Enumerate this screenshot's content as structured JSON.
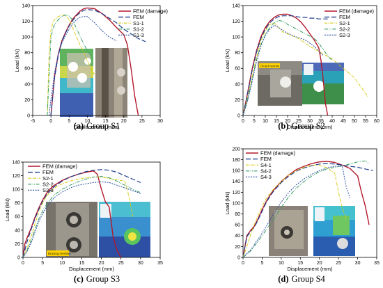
{
  "colors": {
    "fem_damage": "#b2182b",
    "fem": "#1f3f8f",
    "rep1": "#d8c80a",
    "rep2": "#2e9a5f",
    "rep3": "#2d4f9e"
  },
  "chart_data": [
    {
      "type": "line",
      "panel": "a",
      "caption_letter": "(a)",
      "caption_text": "Group S1",
      "xlabel": "Displacement (mm)",
      "ylabel": "Load (kN)",
      "xlim": [
        -5,
        30
      ],
      "ylim": [
        0,
        140
      ],
      "xticks": [
        -5,
        0,
        5,
        10,
        15,
        20,
        25,
        30
      ],
      "yticks": [
        0,
        20,
        40,
        60,
        80,
        100,
        120,
        140
      ],
      "legend_position": "top-right",
      "series": [
        {
          "name": "FEM (damage)",
          "style": "fem_damage",
          "x": [
            0,
            1,
            2,
            3,
            4,
            5,
            6,
            7,
            8,
            9,
            10,
            12,
            14,
            16,
            18,
            20,
            21,
            22,
            23,
            24
          ],
          "y": [
            0,
            50,
            78,
            95,
            106,
            115,
            123,
            128,
            133,
            136,
            137,
            136,
            130,
            122,
            112,
            103,
            90,
            60,
            25,
            0
          ]
        },
        {
          "name": "FEM",
          "style": "fem",
          "x": [
            0,
            1,
            2,
            3,
            4,
            5,
            6,
            7,
            8,
            9,
            10,
            12,
            14,
            16,
            18,
            20,
            22,
            24,
            26
          ],
          "y": [
            0,
            48,
            76,
            94,
            105,
            114,
            121,
            127,
            131,
            134,
            135,
            134,
            130,
            124,
            118,
            110,
            104,
            98,
            94
          ]
        },
        {
          "name": "S1-1",
          "style": "rep1",
          "x": [
            -1,
            -0.5,
            0,
            0.5,
            1,
            2,
            3,
            4,
            5,
            6,
            7,
            8,
            9,
            10,
            11,
            12
          ],
          "y": [
            0,
            80,
            108,
            118,
            122,
            126,
            128,
            127,
            122,
            112,
            100,
            90,
            80,
            70,
            60,
            52
          ]
        },
        {
          "name": "S1-2",
          "style": "rep2",
          "x": [
            -1,
            -0.3,
            0,
            0.5,
            1,
            2,
            3,
            4,
            5,
            6,
            7,
            8,
            9,
            10,
            11
          ],
          "y": [
            0,
            70,
            98,
            110,
            116,
            122,
            126,
            128,
            127,
            121,
            111,
            101,
            91,
            83,
            76
          ]
        },
        {
          "name": "S1-3",
          "style": "rep3",
          "x": [
            -0.5,
            0,
            1,
            2,
            3,
            4,
            5,
            6,
            7,
            8,
            9,
            10,
            12,
            14,
            16,
            18
          ],
          "y": [
            0,
            20,
            55,
            78,
            92,
            102,
            110,
            117,
            122,
            125,
            126,
            126,
            118,
            108,
            100,
            95
          ]
        }
      ]
    },
    {
      "type": "line",
      "panel": "b",
      "caption_letter": "(b)",
      "caption_text": "Group S2",
      "xlabel": "Displacement (mm)",
      "ylabel": "Load (kN)",
      "xlim": [
        0,
        60
      ],
      "ylim": [
        0,
        140
      ],
      "xticks": [
        0,
        5,
        10,
        15,
        20,
        25,
        30,
        35,
        40,
        45,
        50,
        55,
        60
      ],
      "yticks": [
        0,
        20,
        40,
        60,
        80,
        100,
        120,
        140
      ],
      "legend_position": "top-right",
      "insert_label": "Cloud nexmis",
      "series": [
        {
          "name": "FEM (damage)",
          "style": "fem_damage",
          "x": [
            0,
            2,
            4,
            6,
            8,
            10,
            12,
            14,
            16,
            18,
            20,
            22,
            24,
            26,
            28,
            30,
            32,
            34,
            35,
            36,
            37,
            38
          ],
          "y": [
            0,
            28,
            58,
            82,
            100,
            112,
            120,
            125,
            128,
            129,
            129,
            127,
            124,
            119,
            112,
            104,
            96,
            86,
            70,
            45,
            15,
            0
          ]
        },
        {
          "name": "FEM",
          "style": "fem",
          "x": [
            0,
            2,
            4,
            6,
            8,
            10,
            12,
            14,
            16,
            18,
            20,
            22,
            24,
            26,
            28,
            30,
            32,
            34,
            36,
            38
          ],
          "y": [
            0,
            27,
            56,
            80,
            98,
            110,
            118,
            123,
            126,
            127,
            127,
            127,
            126,
            125,
            125,
            124,
            124,
            123,
            123,
            123
          ]
        },
        {
          "name": "S2-1",
          "style": "rep1",
          "x": [
            0,
            2,
            4,
            6,
            8,
            10,
            12,
            14,
            16,
            18,
            20,
            25,
            30,
            35,
            40,
            45,
            50,
            52,
            54,
            56
          ],
          "y": [
            0,
            22,
            48,
            74,
            95,
            108,
            116,
            118,
            112,
            106,
            104,
            98,
            88,
            80,
            72,
            60,
            48,
            40,
            32,
            24
          ]
        },
        {
          "name": "S2-2",
          "style": "rep2",
          "x": [
            0,
            2,
            4,
            6,
            8,
            10,
            12,
            14,
            16,
            18,
            20,
            22,
            24,
            26,
            28,
            30,
            32,
            34,
            36,
            38,
            40
          ],
          "y": [
            0,
            20,
            45,
            70,
            90,
            103,
            112,
            118,
            121,
            120,
            116,
            113,
            110,
            107,
            104,
            101,
            98,
            92,
            84,
            76,
            70
          ]
        },
        {
          "name": "S2-3",
          "style": "rep3",
          "x": [
            0,
            2,
            4,
            6,
            8,
            10,
            12,
            14,
            16,
            18,
            20,
            22,
            24,
            26,
            28,
            30,
            32,
            34,
            36
          ],
          "y": [
            0,
            18,
            42,
            68,
            88,
            102,
            110,
            115,
            112,
            108,
            105,
            102,
            100,
            98,
            96,
            92,
            88,
            82,
            76
          ]
        }
      ]
    },
    {
      "type": "line",
      "panel": "c",
      "caption_letter": "(c)",
      "caption_text": "Group S3",
      "xlabel": "Displacement (mm)",
      "ylabel": "Load (kN)",
      "xlim": [
        0,
        35
      ],
      "ylim": [
        0,
        140
      ],
      "xticks": [
        0,
        5,
        10,
        15,
        20,
        25,
        30,
        35
      ],
      "yticks": [
        0,
        20,
        40,
        60,
        80,
        100,
        120,
        140
      ],
      "legend_position": "top-left",
      "insert_label": "Bracing member",
      "series": [
        {
          "name": "FEM (damage)",
          "style": "fem_damage",
          "x": [
            0,
            0.5,
            1,
            1.5,
            2,
            3,
            4,
            5,
            6,
            7,
            8,
            10,
            12,
            14,
            16,
            17,
            18,
            19,
            20,
            21,
            22,
            23,
            24,
            25
          ],
          "y": [
            0,
            20,
            28,
            35,
            42,
            58,
            72,
            84,
            94,
            101,
            106,
            113,
            118,
            122,
            125,
            126,
            127,
            122,
            100,
            82,
            74,
            30,
            10,
            0
          ]
        },
        {
          "name": "FEM",
          "style": "fem",
          "x": [
            0,
            1,
            2,
            3,
            4,
            5,
            6,
            8,
            10,
            12,
            14,
            16,
            18,
            20,
            22,
            24,
            26,
            28,
            30
          ],
          "y": [
            0,
            22,
            40,
            56,
            70,
            82,
            92,
            104,
            112,
            118,
            122,
            126,
            128,
            129,
            128,
            125,
            120,
            115,
            110
          ]
        },
        {
          "name": "S2-1",
          "style": "rep1",
          "x": [
            0,
            1,
            2,
            3,
            4,
            5,
            6,
            8,
            10,
            12,
            14,
            16,
            18,
            20,
            22,
            24,
            26,
            27,
            28
          ],
          "y": [
            0,
            12,
            30,
            48,
            66,
            80,
            90,
            102,
            108,
            112,
            115,
            117,
            118,
            118,
            116,
            114,
            112,
            90,
            60
          ]
        },
        {
          "name": "S2-2",
          "style": "rep2",
          "x": [
            0,
            1,
            2,
            3,
            4,
            5,
            6,
            8,
            10,
            12,
            14,
            16,
            18,
            20,
            22,
            24,
            26,
            28,
            30
          ],
          "y": [
            0,
            10,
            24,
            40,
            56,
            68,
            78,
            92,
            100,
            106,
            111,
            115,
            118,
            119,
            117,
            112,
            106,
            100,
            95
          ]
        },
        {
          "name": "S2-3",
          "style": "rep3",
          "x": [
            0,
            1,
            2,
            3,
            4,
            5,
            6,
            8,
            10,
            12,
            14,
            16,
            18,
            20,
            22,
            24,
            26,
            28,
            30
          ],
          "y": [
            0,
            8,
            20,
            36,
            52,
            64,
            74,
            88,
            96,
            102,
            106,
            108,
            110,
            111,
            110,
            106,
            102,
            98,
            94
          ]
        }
      ]
    },
    {
      "type": "line",
      "panel": "d",
      "caption_letter": "(d)",
      "caption_text": "Group S4",
      "xlabel": "Displacement (mm)",
      "ylabel": "Load (kN)",
      "xlim": [
        0,
        35
      ],
      "ylim": [
        0,
        200
      ],
      "xticks": [
        0,
        5,
        10,
        15,
        20,
        25,
        30,
        35
      ],
      "yticks": [
        0,
        20,
        40,
        60,
        80,
        100,
        120,
        140,
        160,
        180,
        200
      ],
      "legend_position": "top-left",
      "series": [
        {
          "name": "FEM (damage)",
          "style": "fem_damage",
          "x": [
            0,
            1,
            2,
            3,
            4,
            5,
            6,
            7,
            8,
            10,
            12,
            14,
            16,
            18,
            20,
            22,
            24,
            26,
            28,
            30,
            31,
            32,
            33
          ],
          "y": [
            0,
            40,
            50,
            58,
            72,
            88,
            102,
            114,
            124,
            140,
            152,
            162,
            168,
            173,
            176,
            177,
            175,
            170,
            164,
            150,
            120,
            95,
            60
          ]
        },
        {
          "name": "FEM",
          "style": "fem",
          "x": [
            0,
            1,
            2,
            3,
            4,
            5,
            6,
            7,
            8,
            10,
            12,
            14,
            16,
            18,
            20,
            22,
            24,
            26,
            28,
            30,
            32,
            34
          ],
          "y": [
            0,
            38,
            48,
            56,
            70,
            85,
            100,
            112,
            122,
            138,
            150,
            159,
            165,
            169,
            172,
            173,
            172,
            170,
            168,
            166,
            163,
            160
          ]
        },
        {
          "name": "S4-1",
          "style": "rep1",
          "x": [
            0,
            1,
            2,
            3,
            4,
            5,
            6,
            8,
            10,
            12,
            14,
            16,
            18,
            20,
            22,
            24,
            25,
            26,
            27
          ],
          "y": [
            0,
            20,
            42,
            62,
            78,
            94,
            108,
            126,
            140,
            152,
            160,
            166,
            170,
            170,
            165,
            155,
            120,
            90,
            70
          ]
        },
        {
          "name": "S4-2",
          "style": "rep2",
          "x": [
            0,
            2,
            4,
            6,
            8,
            10,
            12,
            14,
            16,
            18,
            20,
            22,
            24,
            26,
            28,
            30,
            32,
            33
          ],
          "y": [
            0,
            12,
            30,
            50,
            70,
            92,
            112,
            128,
            140,
            150,
            158,
            163,
            166,
            169,
            172,
            176,
            178,
            172
          ]
        },
        {
          "name": "S4-3",
          "style": "rep3",
          "x": [
            0,
            2,
            4,
            6,
            8,
            10,
            12,
            14,
            16,
            18,
            20,
            22,
            24,
            26,
            27,
            28
          ],
          "y": [
            0,
            14,
            34,
            56,
            80,
            102,
            120,
            134,
            145,
            153,
            160,
            165,
            168,
            168,
            130,
            110
          ]
        }
      ]
    }
  ]
}
